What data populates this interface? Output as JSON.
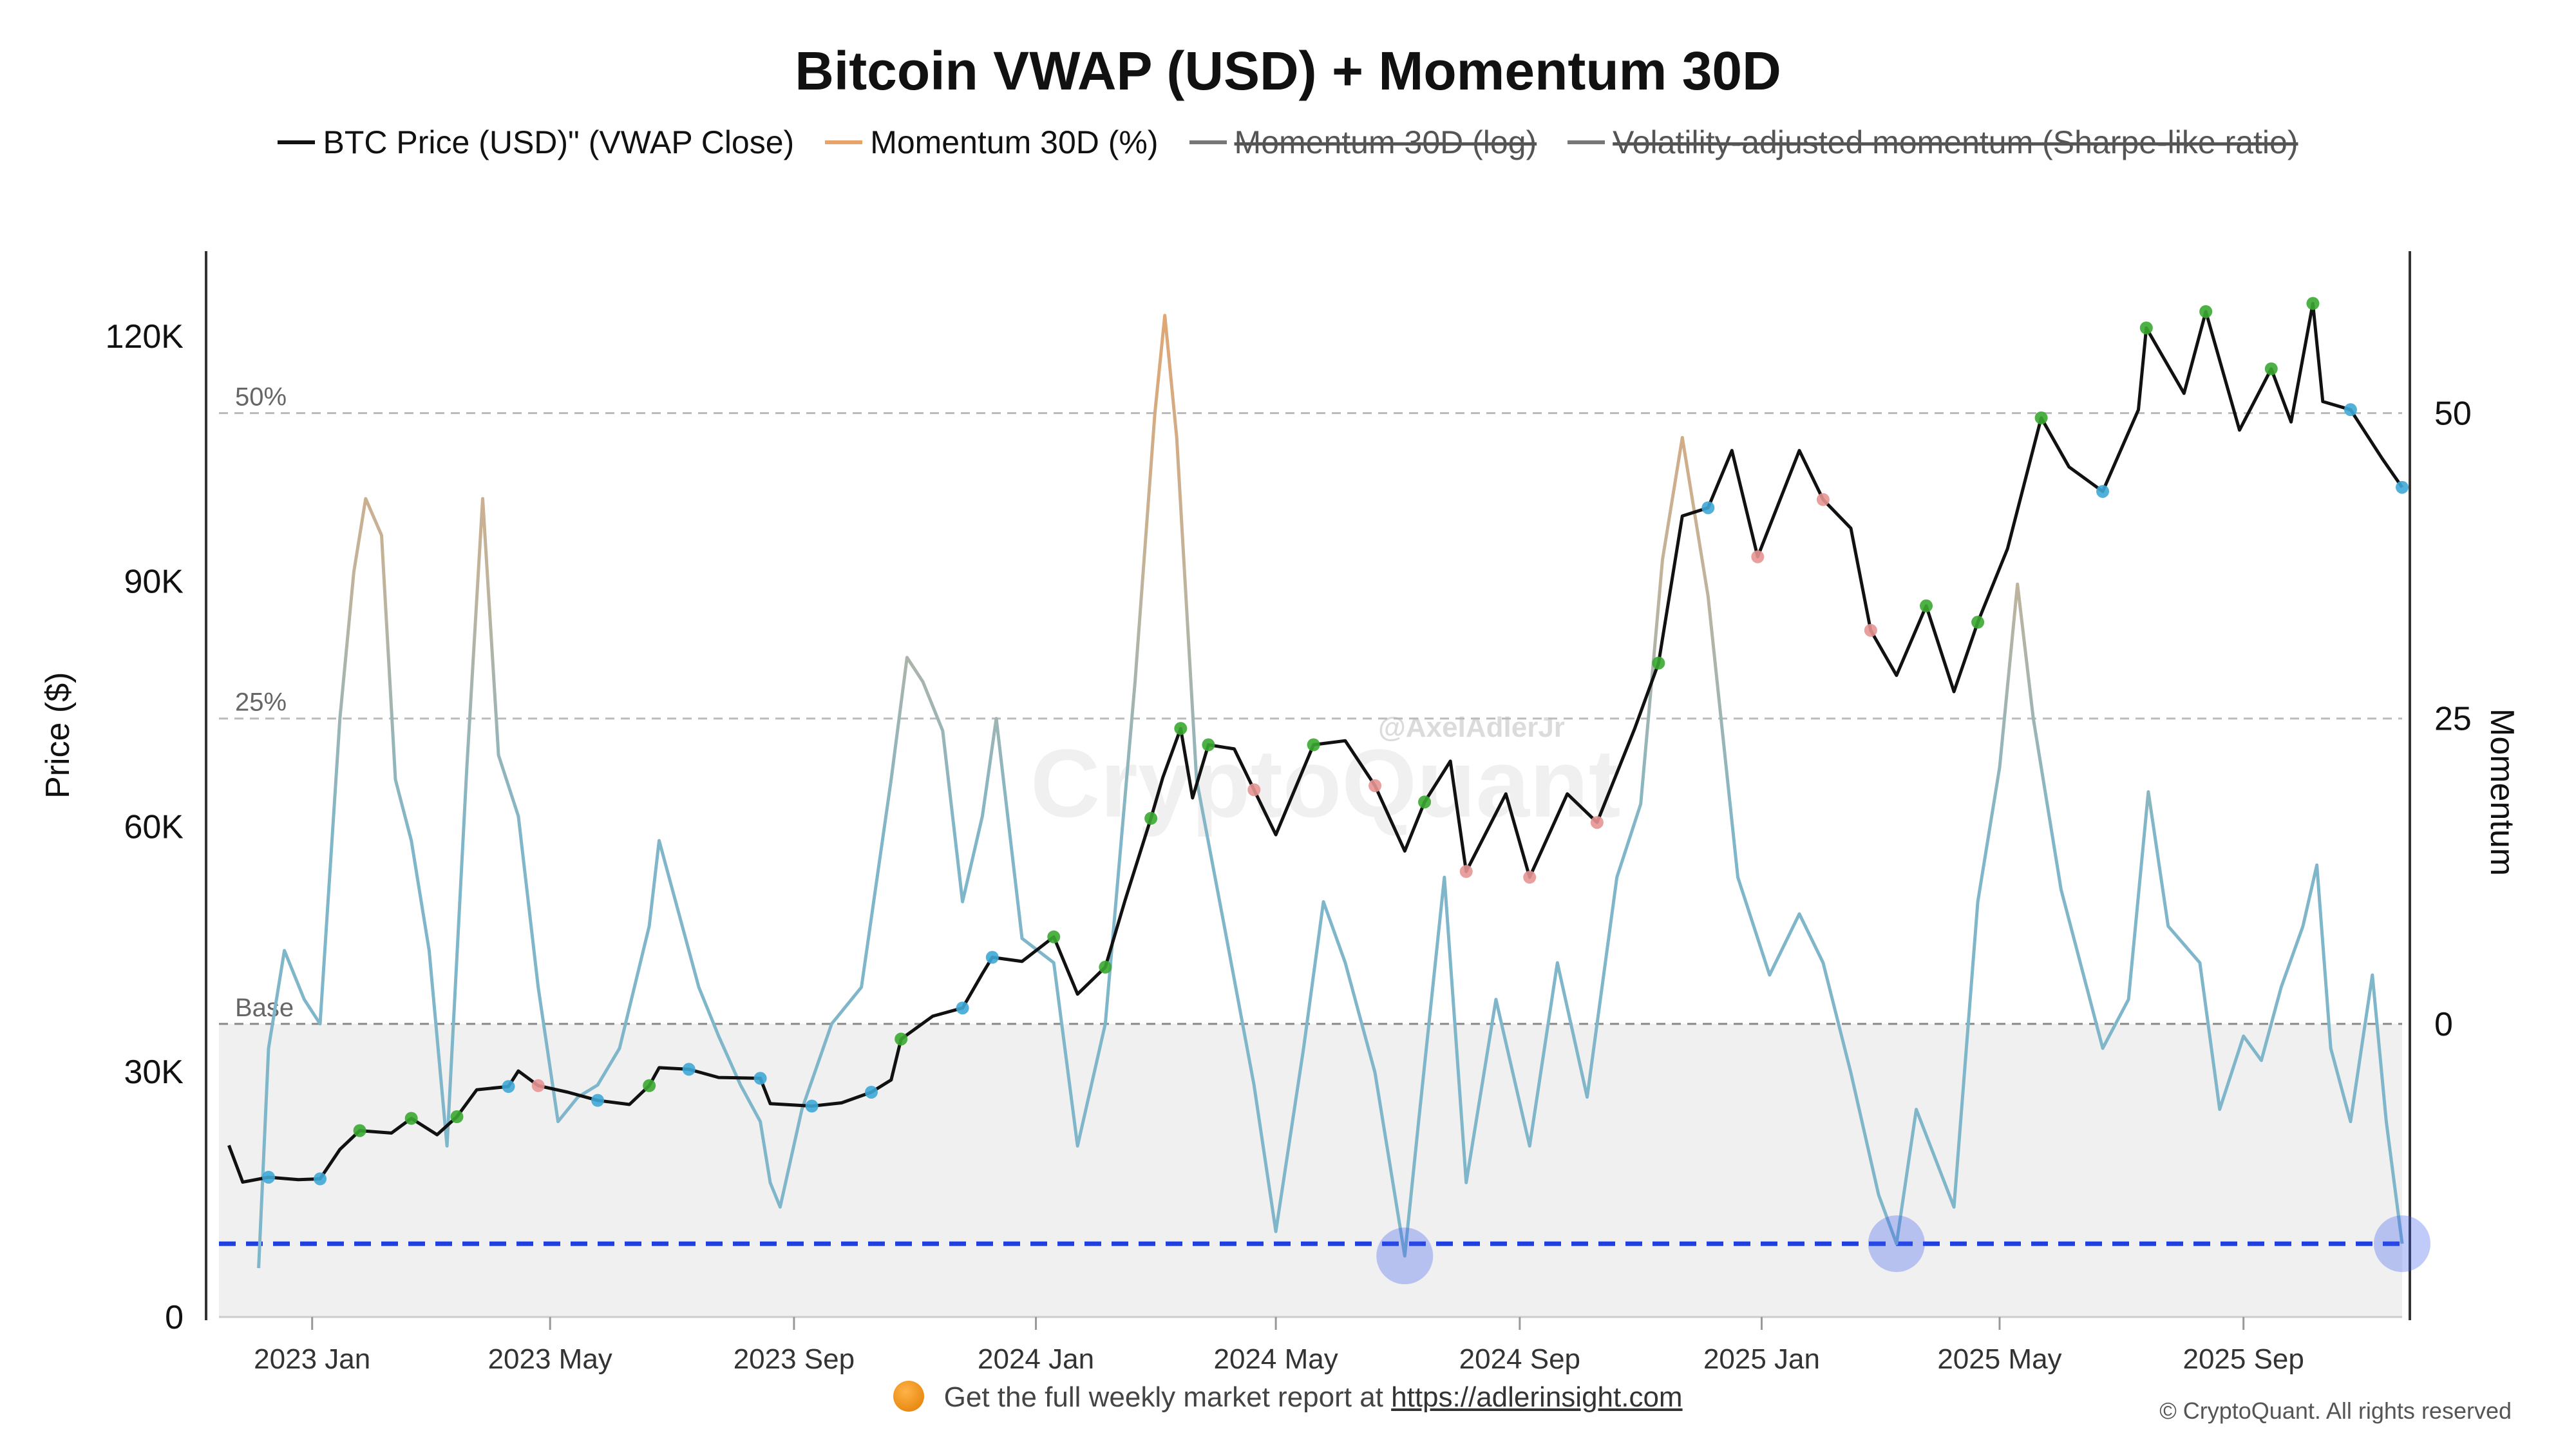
{
  "title": "Bitcoin VWAP (USD) + Momentum 30D",
  "legend": [
    {
      "label": "BTC Price (USD)\" (VWAP Close)",
      "color": "#111111",
      "enabled": true
    },
    {
      "label": "Momentum 30D (%)",
      "color": "#e8a36a",
      "enabled": true
    },
    {
      "label": "Momentum 30D (log)",
      "color": "#777777",
      "enabled": false
    },
    {
      "label": "Volatility-adjusted momentum (Sharpe-like ratio)",
      "color": "#777777",
      "enabled": false
    }
  ],
  "watermark": {
    "handle": "@AxelAdlerJr",
    "logo": "CryptoQuant"
  },
  "footer": {
    "prefix": "Get the full weekly market report at",
    "link": "https://adlerinsight.com"
  },
  "copyright": "© CryptoQuant. All rights reserved",
  "colors": {
    "price": "#111111",
    "momentum_high": "#e8a36a",
    "momentum_low": "#7fb6c9",
    "threshold_line": "#1f3fe0",
    "marker_up": "#3aa832",
    "marker_down": "#e59593",
    "marker_neutral": "#3fa9d6",
    "marker_extreme": "#d33b8d",
    "base_zone": "#f0f0f0"
  },
  "chart_data": {
    "type": "line",
    "x_axis": {
      "ticks": [
        "2023 Jan",
        "2023 May",
        "2023 Sep",
        "2024 Jan",
        "2024 May",
        "2024 Sep",
        "2025 Jan",
        "2025 May",
        "2025 Sep"
      ],
      "range": [
        "2022-11-15",
        "2025-11-20"
      ]
    },
    "y_left": {
      "label": "Price ($)",
      "ticks": [
        0,
        30000,
        60000,
        90000,
        120000
      ],
      "tick_labels": [
        "0",
        "30K",
        "60K",
        "90K",
        "120K"
      ],
      "range": [
        0,
        130000
      ]
    },
    "y_right": {
      "label": "Momentum",
      "ticks": [
        0,
        25,
        50
      ],
      "tick_labels": [
        "0",
        "25",
        "50"
      ],
      "range": [
        -24,
        63
      ]
    },
    "reference_lines": [
      {
        "label": "50%",
        "value": 50
      },
      {
        "label": "25%",
        "value": 25
      },
      {
        "label": "Base",
        "value": 0
      }
    ],
    "threshold_line": {
      "value": -18
    },
    "extreme_low_markers": [
      {
        "x": "2024-07-05",
        "y": -19
      },
      {
        "x": "2025-03-10",
        "y": -18
      },
      {
        "x": "2025-11-20",
        "y": -18
      }
    ],
    "series": [
      {
        "name": "BTC Price (USD)\" (VWAP Close)",
        "axis": "left",
        "points": [
          [
            "2022-11-20",
            21000
          ],
          [
            "2022-11-27",
            16500
          ],
          [
            "2022-12-10",
            17100
          ],
          [
            "2022-12-25",
            16800
          ],
          [
            "2023-01-05",
            16900
          ],
          [
            "2023-01-15",
            20500
          ],
          [
            "2023-01-25",
            22800
          ],
          [
            "2023-02-10",
            22500
          ],
          [
            "2023-02-20",
            24300
          ],
          [
            "2023-03-05",
            22300
          ],
          [
            "2023-03-15",
            24500
          ],
          [
            "2023-03-25",
            27800
          ],
          [
            "2023-04-10",
            28200
          ],
          [
            "2023-04-15",
            30100
          ],
          [
            "2023-04-25",
            28300
          ],
          [
            "2023-05-10",
            27500
          ],
          [
            "2023-05-25",
            26500
          ],
          [
            "2023-06-10",
            26000
          ],
          [
            "2023-06-20",
            28300
          ],
          [
            "2023-06-25",
            30500
          ],
          [
            "2023-07-10",
            30300
          ],
          [
            "2023-07-25",
            29300
          ],
          [
            "2023-08-15",
            29200
          ],
          [
            "2023-08-20",
            26100
          ],
          [
            "2023-09-10",
            25800
          ],
          [
            "2023-09-25",
            26200
          ],
          [
            "2023-10-10",
            27500
          ],
          [
            "2023-10-20",
            29000
          ],
          [
            "2023-10-25",
            34000
          ],
          [
            "2023-11-10",
            36800
          ],
          [
            "2023-11-25",
            37800
          ],
          [
            "2023-12-05",
            42000
          ],
          [
            "2023-12-10",
            44000
          ],
          [
            "2023-12-25",
            43500
          ],
          [
            "2024-01-10",
            46500
          ],
          [
            "2024-01-22",
            39500
          ],
          [
            "2024-02-05",
            42800
          ],
          [
            "2024-02-15",
            51000
          ],
          [
            "2024-02-28",
            61000
          ],
          [
            "2024-03-05",
            66000
          ],
          [
            "2024-03-14",
            72000
          ],
          [
            "2024-03-20",
            63500
          ],
          [
            "2024-03-28",
            70000
          ],
          [
            "2024-04-10",
            69500
          ],
          [
            "2024-04-20",
            64500
          ],
          [
            "2024-05-01",
            59000
          ],
          [
            "2024-05-20",
            70000
          ],
          [
            "2024-06-05",
            70500
          ],
          [
            "2024-06-20",
            65000
          ],
          [
            "2024-07-05",
            57000
          ],
          [
            "2024-07-15",
            63000
          ],
          [
            "2024-07-28",
            68000
          ],
          [
            "2024-08-05",
            54500
          ],
          [
            "2024-08-25",
            64000
          ],
          [
            "2024-09-06",
            53800
          ],
          [
            "2024-09-25",
            64000
          ],
          [
            "2024-10-10",
            60500
          ],
          [
            "2024-10-29",
            72000
          ],
          [
            "2024-11-10",
            80000
          ],
          [
            "2024-11-22",
            98000
          ],
          [
            "2024-12-05",
            99000
          ],
          [
            "2024-12-17",
            106000
          ],
          [
            "2024-12-30",
            93000
          ],
          [
            "2025-01-20",
            106000
          ],
          [
            "2025-02-01",
            100000
          ],
          [
            "2025-02-15",
            96500
          ],
          [
            "2025-02-25",
            84000
          ],
          [
            "2025-03-10",
            78500
          ],
          [
            "2025-03-25",
            87000
          ],
          [
            "2025-04-08",
            76500
          ],
          [
            "2025-04-20",
            85000
          ],
          [
            "2025-05-05",
            94000
          ],
          [
            "2025-05-22",
            110000
          ],
          [
            "2025-06-05",
            104000
          ],
          [
            "2025-06-22",
            101000
          ],
          [
            "2025-07-10",
            111000
          ],
          [
            "2025-07-14",
            121000
          ],
          [
            "2025-08-02",
            113000
          ],
          [
            "2025-08-13",
            123000
          ],
          [
            "2025-08-30",
            108500
          ],
          [
            "2025-09-15",
            116000
          ],
          [
            "2025-09-25",
            109500
          ],
          [
            "2025-10-06",
            124000
          ],
          [
            "2025-10-11",
            112000
          ],
          [
            "2025-10-25",
            111000
          ],
          [
            "2025-11-10",
            105000
          ],
          [
            "2025-11-20",
            101500
          ]
        ]
      },
      {
        "name": "Momentum 30D (%)",
        "axis": "right",
        "points": [
          [
            "2022-12-05",
            -20
          ],
          [
            "2022-12-10",
            -2
          ],
          [
            "2022-12-18",
            6
          ],
          [
            "2022-12-28",
            2
          ],
          [
            "2023-01-05",
            0
          ],
          [
            "2023-01-15",
            25
          ],
          [
            "2023-01-22",
            37
          ],
          [
            "2023-01-28",
            43
          ],
          [
            "2023-02-05",
            40
          ],
          [
            "2023-02-12",
            20
          ],
          [
            "2023-02-20",
            15
          ],
          [
            "2023-03-01",
            6
          ],
          [
            "2023-03-10",
            -10
          ],
          [
            "2023-03-20",
            21
          ],
          [
            "2023-03-28",
            43
          ],
          [
            "2023-04-05",
            22
          ],
          [
            "2023-04-15",
            17
          ],
          [
            "2023-04-25",
            3
          ],
          [
            "2023-05-05",
            -8
          ],
          [
            "2023-05-15",
            -6
          ],
          [
            "2023-05-25",
            -5
          ],
          [
            "2023-06-05",
            -2
          ],
          [
            "2023-06-20",
            8
          ],
          [
            "2023-06-25",
            15
          ],
          [
            "2023-07-05",
            9
          ],
          [
            "2023-07-15",
            3
          ],
          [
            "2023-07-25",
            -1
          ],
          [
            "2023-08-05",
            -5
          ],
          [
            "2023-08-15",
            -8
          ],
          [
            "2023-08-20",
            -13
          ],
          [
            "2023-08-25",
            -15
          ],
          [
            "2023-09-05",
            -7
          ],
          [
            "2023-09-20",
            0
          ],
          [
            "2023-10-05",
            3
          ],
          [
            "2023-10-20",
            20
          ],
          [
            "2023-10-28",
            30
          ],
          [
            "2023-11-05",
            28
          ],
          [
            "2023-11-15",
            24
          ],
          [
            "2023-11-25",
            10
          ],
          [
            "2023-12-05",
            17
          ],
          [
            "2023-12-12",
            25
          ],
          [
            "2023-12-25",
            7
          ],
          [
            "2024-01-10",
            5
          ],
          [
            "2024-01-22",
            -10
          ],
          [
            "2024-02-05",
            0
          ],
          [
            "2024-02-20",
            28
          ],
          [
            "2024-03-01",
            50
          ],
          [
            "2024-03-06",
            58
          ],
          [
            "2024-03-12",
            48
          ],
          [
            "2024-03-22",
            20
          ],
          [
            "2024-04-05",
            8
          ],
          [
            "2024-04-20",
            -5
          ],
          [
            "2024-05-01",
            -17
          ],
          [
            "2024-05-15",
            -2
          ],
          [
            "2024-05-25",
            10
          ],
          [
            "2024-06-05",
            5
          ],
          [
            "2024-06-20",
            -4
          ],
          [
            "2024-07-05",
            -19
          ],
          [
            "2024-07-12",
            -8
          ],
          [
            "2024-07-25",
            12
          ],
          [
            "2024-08-05",
            -13
          ],
          [
            "2024-08-20",
            2
          ],
          [
            "2024-09-06",
            -10
          ],
          [
            "2024-09-20",
            5
          ],
          [
            "2024-10-05",
            -6
          ],
          [
            "2024-10-20",
            12
          ],
          [
            "2024-11-01",
            18
          ],
          [
            "2024-11-12",
            38
          ],
          [
            "2024-11-22",
            48
          ],
          [
            "2024-12-05",
            35
          ],
          [
            "2024-12-20",
            12
          ],
          [
            "2025-01-05",
            4
          ],
          [
            "2025-01-20",
            9
          ],
          [
            "2025-02-01",
            5
          ],
          [
            "2025-02-15",
            -4
          ],
          [
            "2025-03-01",
            -14
          ],
          [
            "2025-03-10",
            -18
          ],
          [
            "2025-03-20",
            -7
          ],
          [
            "2025-04-08",
            -15
          ],
          [
            "2025-04-20",
            10
          ],
          [
            "2025-05-01",
            21
          ],
          [
            "2025-05-10",
            36
          ],
          [
            "2025-05-18",
            25
          ],
          [
            "2025-06-01",
            11
          ],
          [
            "2025-06-22",
            -2
          ],
          [
            "2025-07-05",
            2
          ],
          [
            "2025-07-15",
            19
          ],
          [
            "2025-07-25",
            8
          ],
          [
            "2025-08-10",
            5
          ],
          [
            "2025-08-20",
            -7
          ],
          [
            "2025-09-01",
            -1
          ],
          [
            "2025-09-10",
            -3
          ],
          [
            "2025-09-20",
            3
          ],
          [
            "2025-10-01",
            8
          ],
          [
            "2025-10-08",
            13
          ],
          [
            "2025-10-15",
            -2
          ],
          [
            "2025-10-25",
            -8
          ],
          [
            "2025-11-05",
            4
          ],
          [
            "2025-11-12",
            -8
          ],
          [
            "2025-11-20",
            -18
          ]
        ]
      }
    ]
  }
}
